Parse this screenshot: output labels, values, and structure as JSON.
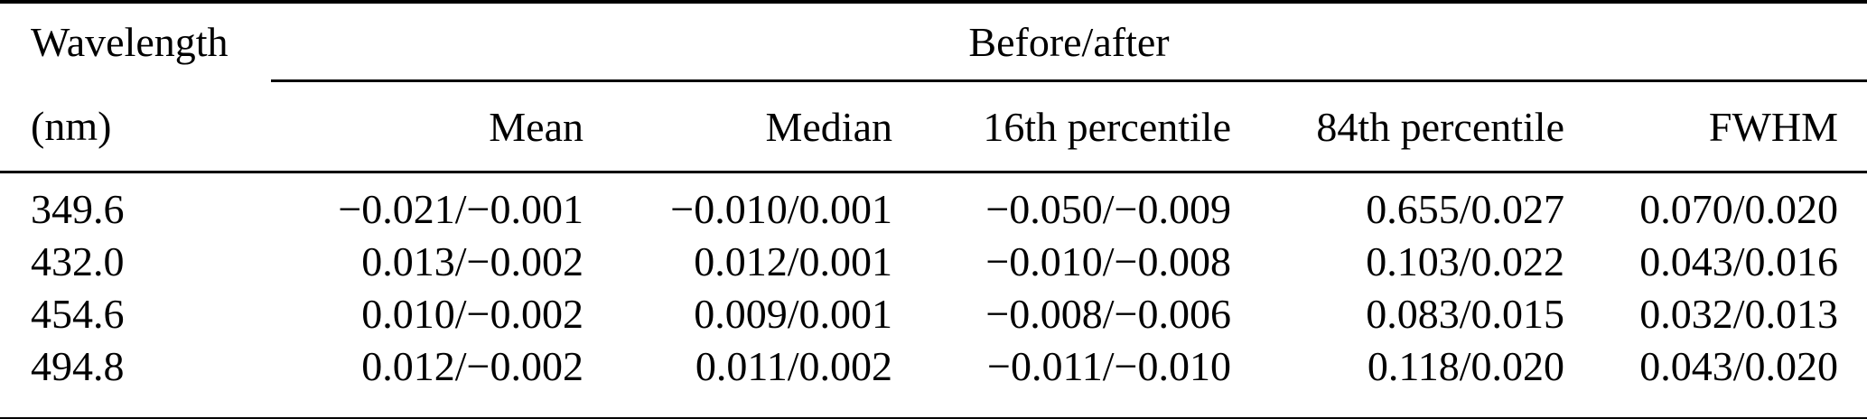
{
  "table": {
    "header": {
      "wavelength_line1": "Wavelength",
      "wavelength_line2": "(nm)",
      "span_label": "Before/after",
      "columns": [
        "Mean",
        "Median",
        "16th percentile",
        "84th percentile",
        "FWHM"
      ]
    },
    "rows": [
      {
        "wavelength": "349.6",
        "mean": "−0.021/−0.001",
        "median": "−0.010/0.001",
        "p16": "−0.050/−0.009",
        "p84": "0.655/0.027",
        "fwhm": "0.070/0.020"
      },
      {
        "wavelength": "432.0",
        "mean": "0.013/−0.002",
        "median": "0.012/0.001",
        "p16": "−0.010/−0.008",
        "p84": "0.103/0.022",
        "fwhm": "0.043/0.016"
      },
      {
        "wavelength": "454.6",
        "mean": "0.010/−0.002",
        "median": "0.009/0.001",
        "p16": "−0.008/−0.006",
        "p84": "0.083/0.015",
        "fwhm": "0.032/0.013"
      },
      {
        "wavelength": "494.8",
        "mean": "0.012/−0.002",
        "median": "0.011/0.002",
        "p16": "−0.011/−0.010",
        "p84": "0.118/0.020",
        "fwhm": "0.043/0.020"
      }
    ],
    "colors": {
      "text": "#000000",
      "background": "#ffffff",
      "rule": "#000000"
    }
  }
}
